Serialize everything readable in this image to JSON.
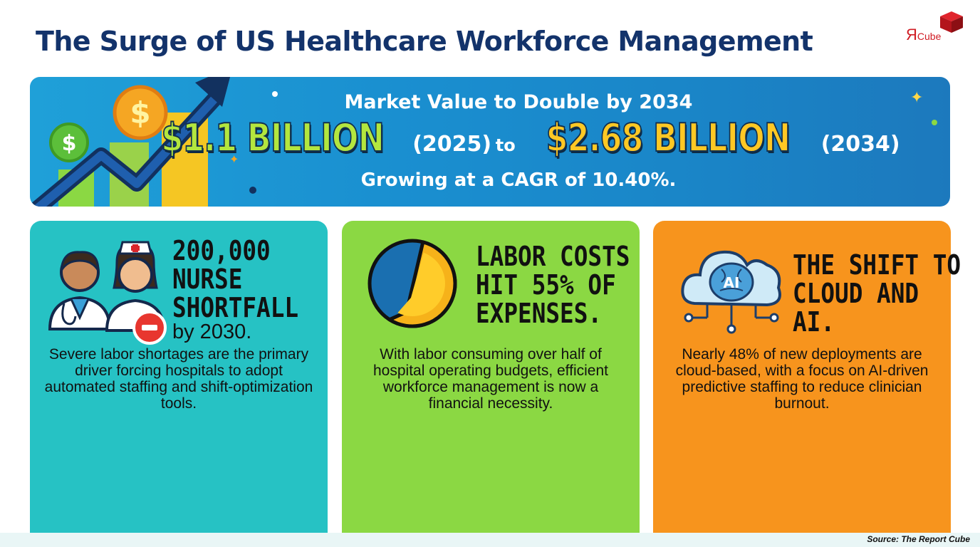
{
  "title": "The Surge of US Healthcare Workforce Management",
  "logo": {
    "mark": "R",
    "text": "Cube",
    "color": "#d01c24"
  },
  "banner": {
    "headline": "Market Value to Double by 2034",
    "value_start": "$1.1 BILLION",
    "year_start": "(2025)",
    "connector": "to",
    "value_end": "$2.68 BILLION",
    "year_end": "(2034)",
    "cagr_text": "Growing at a CAGR of 10.40%."
  },
  "cards": [
    {
      "heading": [
        "200,000",
        "NURSE",
        "SHORTFALL"
      ],
      "subheading": "by 2030.",
      "body": "Severe labor shortages are the primary driver forcing hospitals to adopt automated staffing and shift-optimization tools.",
      "icon": "nurse-doctor-icon",
      "color": "#26c2c4"
    },
    {
      "heading": [
        "LABOR COSTS",
        "HIT 55% OF",
        "EXPENSES."
      ],
      "body": "With labor consuming over half of hospital operating budgets, efficient workforce management is now a financial necessity.",
      "icon": "pie-chart-icon",
      "color": "#8bd843"
    },
    {
      "heading": [
        "THE SHIFT TO",
        "CLOUD AND",
        "AI."
      ],
      "body": "Nearly 48% of new deployments are cloud-based, with a focus on AI-driven predictive staffing to reduce clinician burnout.",
      "icon": "cloud-ai-icon",
      "icon_label": "AI",
      "color": "#f7941d"
    }
  ],
  "source": "Source: The Report Cube"
}
